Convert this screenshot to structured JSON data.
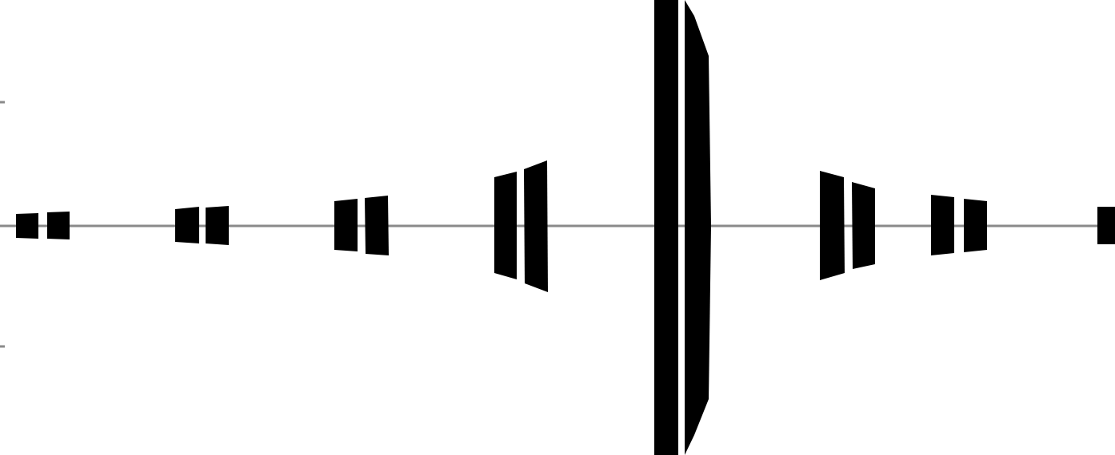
{
  "diagram": {
    "shape": "symmetric-pulse-train",
    "baseline_color": "#8a8a8a",
    "mark_color": "#000000",
    "background": "#ffffff"
  }
}
